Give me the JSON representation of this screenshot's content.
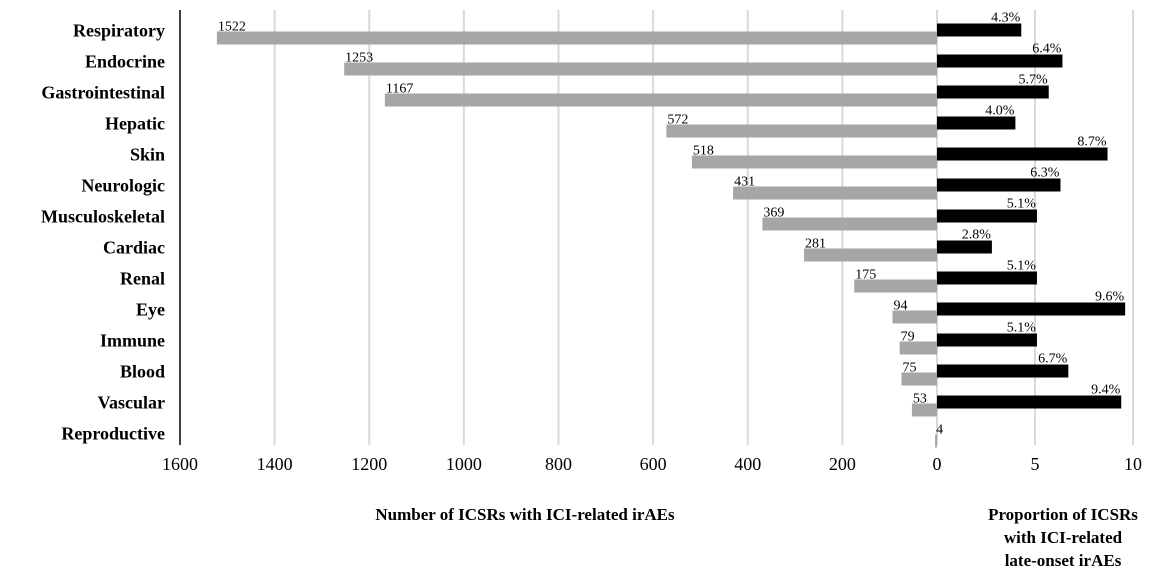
{
  "chart_data": {
    "type": "bar",
    "layout": "back-to-back horizontal bars",
    "categories": [
      "Respiratory",
      "Endocrine",
      "Gastrointestinal",
      "Hepatic",
      "Skin",
      "Neurologic",
      "Musculoskeletal",
      "Cardiac",
      "Renal",
      "Eye",
      "Immune",
      "Blood",
      "Vascular",
      "Reproductive"
    ],
    "series": [
      {
        "values": [
          1522,
          1253,
          1167,
          572,
          518,
          431,
          369,
          281,
          175,
          94,
          79,
          75,
          53,
          4
        ],
        "labels": [
          "1522",
          "1253",
          "1167",
          "572",
          "518",
          "431",
          "369",
          "281",
          "175",
          "94",
          "79",
          "75",
          "53",
          "4"
        ],
        "color": "#a6a6a6",
        "side": "left"
      },
      {
        "values": [
          4.3,
          6.4,
          5.7,
          4.0,
          8.7,
          6.3,
          5.1,
          2.8,
          5.1,
          9.6,
          5.1,
          6.7,
          9.4,
          null
        ],
        "labels": [
          "4.3%",
          "6.4%",
          "5.7%",
          "4.0%",
          "8.7%",
          "6.3%",
          "5.1%",
          "2.8%",
          "5.1%",
          "9.6%",
          "5.1%",
          "6.7%",
          "9.4%",
          ""
        ],
        "color": "#000000",
        "side": "right"
      }
    ],
    "left_axis": {
      "label": "Number of ICSRs with ICI-related irAEs",
      "range": [
        1600,
        0
      ],
      "ticks": [
        "1600",
        "1400",
        "1200",
        "1000",
        "800",
        "600",
        "400",
        "200",
        "0"
      ]
    },
    "right_axis": {
      "label_lines": [
        "Proportion of ICSRs",
        "with ICI-related",
        "late-onset irAEs"
      ],
      "range": [
        0,
        10
      ],
      "ticks": [
        "5",
        "10"
      ]
    },
    "grid": true
  }
}
